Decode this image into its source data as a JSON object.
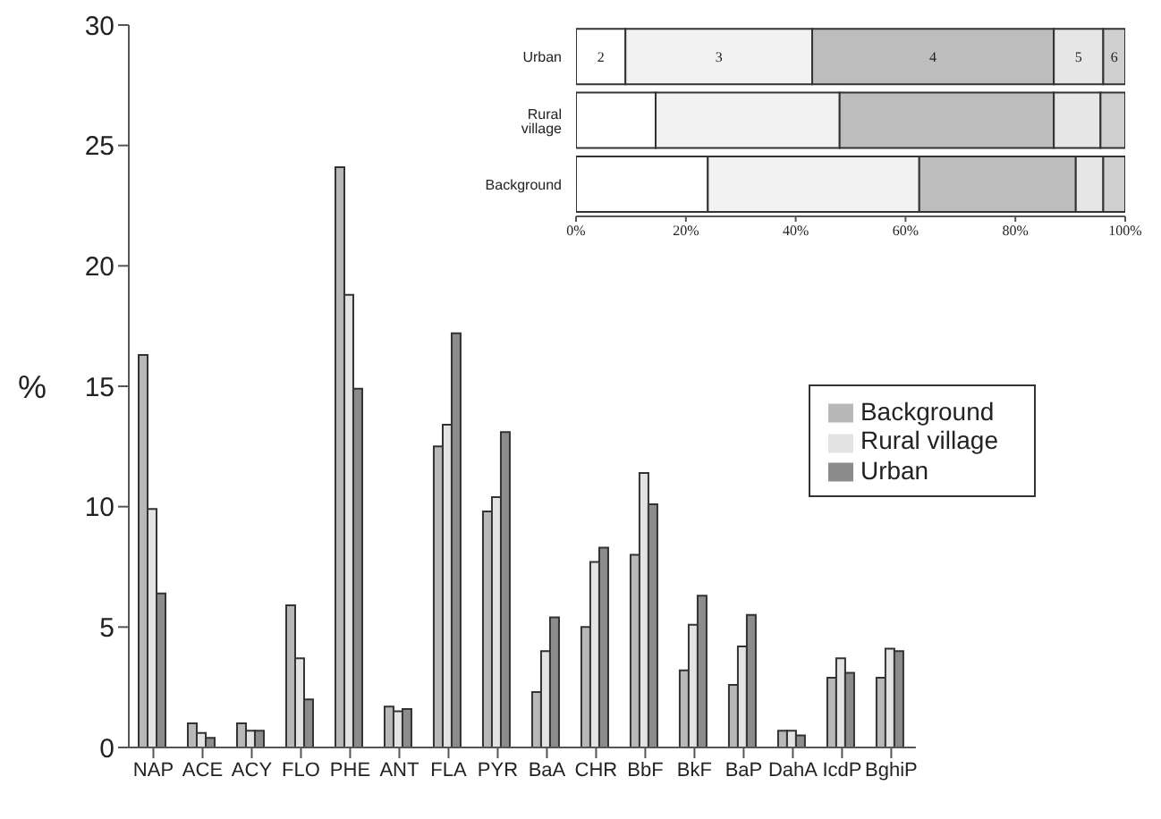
{
  "chart_data": [
    {
      "type": "bar",
      "ylabel": "%",
      "categories": [
        "NAP",
        "ACE",
        "ACY",
        "FLO",
        "PHE",
        "ANT",
        "FLA",
        "PYR",
        "BaA",
        "CHR",
        "BbF",
        "BkF",
        "BaP",
        "DahA",
        "IcdP",
        "BghiP"
      ],
      "series": [
        {
          "name": "Background",
          "color": "#b8b8b8",
          "values": [
            16.3,
            1.0,
            1.0,
            5.9,
            24.1,
            1.7,
            12.5,
            9.8,
            2.3,
            5.0,
            8.0,
            3.2,
            2.6,
            0.7,
            2.9,
            2.9
          ]
        },
        {
          "name": "Rural village",
          "color": "#e3e3e3",
          "values": [
            9.9,
            0.6,
            0.7,
            3.7,
            18.8,
            1.5,
            13.4,
            10.4,
            4.0,
            7.7,
            11.4,
            5.1,
            4.2,
            0.7,
            3.7,
            4.1
          ]
        },
        {
          "name": "Urban",
          "color": "#8c8c8c",
          "values": [
            6.4,
            0.4,
            0.7,
            2.0,
            14.9,
            1.6,
            17.2,
            13.1,
            5.4,
            8.3,
            10.1,
            6.3,
            5.5,
            0.5,
            3.1,
            4.0
          ]
        }
      ],
      "ylim": [
        0,
        30
      ],
      "yticks": [
        0,
        5,
        10,
        15,
        20,
        25,
        30
      ],
      "grid": false,
      "legend": "right"
    },
    {
      "type": "bar",
      "orientation": "horizontal",
      "stacked": true,
      "categories": [
        "Urban",
        "Rural village",
        "Background"
      ],
      "series": [
        {
          "name": "2",
          "color": "#ffffff",
          "values": [
            9,
            14.5,
            24
          ]
        },
        {
          "name": "3",
          "color": "#f2f2f2",
          "values": [
            34,
            33.5,
            38.5
          ]
        },
        {
          "name": "4",
          "color": "#bdbdbd",
          "values": [
            44,
            39,
            28.5
          ]
        },
        {
          "name": "5",
          "color": "#e6e6e6",
          "values": [
            9,
            8.5,
            5
          ]
        },
        {
          "name": "6",
          "color": "#cfcfcf",
          "values": [
            4,
            4.5,
            4
          ]
        }
      ],
      "xlim": [
        0,
        100
      ],
      "xticks": [
        {
          "value": 0,
          "label": "0%"
        },
        {
          "value": 20,
          "label": "20%"
        },
        {
          "value": 40,
          "label": "40%"
        },
        {
          "value": 60,
          "label": "60%"
        },
        {
          "value": 80,
          "label": "80%"
        },
        {
          "value": 100,
          "label": "100%"
        }
      ],
      "grid": false,
      "legend": false
    }
  ]
}
